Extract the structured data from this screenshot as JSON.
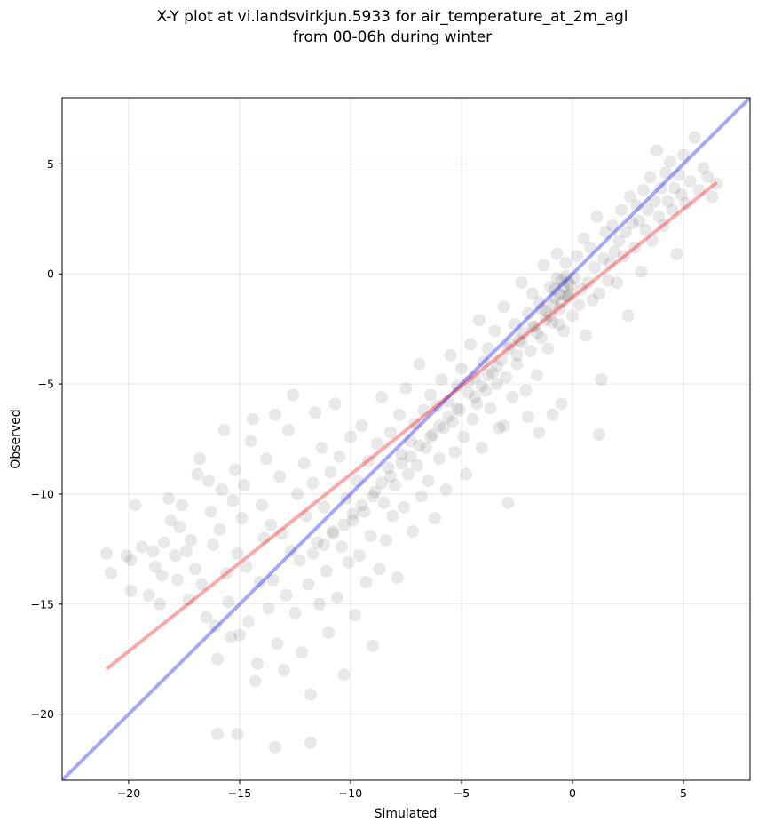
{
  "chart_data": {
    "type": "scatter",
    "title_lines": [
      "X-Y plot at vi.landsvirkjun.5933 for air_temperature_at_2m_agl",
      "from 00-06h during winter"
    ],
    "xlabel": "Simulated",
    "ylabel": "Observed",
    "xlim": [
      -23,
      8
    ],
    "ylim": [
      -23,
      8
    ],
    "x_ticks": [
      -20,
      -15,
      -10,
      -5,
      0,
      5
    ],
    "y_ticks": [
      -20,
      -15,
      -10,
      -5,
      0,
      5
    ],
    "x_tick_labels": [
      "−20",
      "−15",
      "−10",
      "−5",
      "0",
      "5"
    ],
    "y_tick_labels": [
      "−20",
      "−15",
      "−10",
      "−5",
      "0",
      "5"
    ],
    "grid": true,
    "point_color": "#000000",
    "point_opacity": 0.09,
    "identity_line": {
      "color": "#0000ff",
      "x": [
        -23,
        8
      ],
      "y": [
        -23,
        8
      ]
    },
    "fit_line": {
      "color": "#ff0000",
      "x": [
        -21,
        6.5
      ],
      "y": [
        -17.95,
        4.15
      ]
    },
    "points": [
      [
        -21.0,
        -12.7
      ],
      [
        -20.8,
        -13.6
      ],
      [
        -20.1,
        -12.8
      ],
      [
        -19.9,
        -13.0
      ],
      [
        -19.9,
        -14.4
      ],
      [
        -19.7,
        -10.5
      ],
      [
        -19.4,
        -12.4
      ],
      [
        -19.1,
        -14.6
      ],
      [
        -18.9,
        -12.6
      ],
      [
        -18.8,
        -13.3
      ],
      [
        -18.6,
        -15.0
      ],
      [
        -18.5,
        -13.7
      ],
      [
        -18.4,
        -12.2
      ],
      [
        -18.2,
        -10.2
      ],
      [
        -18.1,
        -11.2
      ],
      [
        -17.9,
        -12.8
      ],
      [
        -17.8,
        -13.9
      ],
      [
        -17.7,
        -11.5
      ],
      [
        -17.6,
        -10.5
      ],
      [
        -17.4,
        -12.6
      ],
      [
        -17.3,
        -14.8
      ],
      [
        -17.2,
        -12.1
      ],
      [
        -17.0,
        -13.4
      ],
      [
        -16.9,
        -9.1
      ],
      [
        -16.8,
        -8.4
      ],
      [
        -16.7,
        -14.1
      ],
      [
        -16.5,
        -15.6
      ],
      [
        -16.4,
        -9.4
      ],
      [
        -16.3,
        -10.8
      ],
      [
        -16.2,
        -12.3
      ],
      [
        -16.1,
        -16.0
      ],
      [
        -16.0,
        -17.5
      ],
      [
        -15.9,
        -11.6
      ],
      [
        -15.8,
        -9.8
      ],
      [
        -15.7,
        -7.1
      ],
      [
        -15.6,
        -13.6
      ],
      [
        -15.5,
        -14.9
      ],
      [
        -15.4,
        -16.5
      ],
      [
        -15.3,
        -10.3
      ],
      [
        -15.2,
        -8.9
      ],
      [
        -15.1,
        -12.7
      ],
      [
        -15.0,
        -16.4
      ],
      [
        -14.9,
        -11.1
      ],
      [
        -14.8,
        -9.6
      ],
      [
        -14.7,
        -13.3
      ],
      [
        -14.6,
        -15.8
      ],
      [
        -14.5,
        -7.6
      ],
      [
        -14.4,
        -6.6
      ],
      [
        -14.3,
        -18.5
      ],
      [
        -14.2,
        -17.7
      ],
      [
        -14.1,
        -14.0
      ],
      [
        -14.0,
        -10.5
      ],
      [
        -13.9,
        -12.0
      ],
      [
        -13.8,
        -8.4
      ],
      [
        -13.7,
        -15.2
      ],
      [
        -13.6,
        -11.4
      ],
      [
        -13.5,
        -13.9
      ],
      [
        -13.4,
        -6.4
      ],
      [
        -13.3,
        -16.8
      ],
      [
        -13.2,
        -9.2
      ],
      [
        -13.1,
        -11.8
      ],
      [
        -13.0,
        -18.0
      ],
      [
        -12.9,
        -14.6
      ],
      [
        -12.8,
        -7.1
      ],
      [
        -12.7,
        -12.6
      ],
      [
        -12.6,
        -5.5
      ],
      [
        -12.5,
        -15.4
      ],
      [
        -12.4,
        -10.0
      ],
      [
        -12.3,
        -13.0
      ],
      [
        -12.2,
        -17.2
      ],
      [
        -12.1,
        -8.6
      ],
      [
        -12.0,
        -11.0
      ],
      [
        -11.9,
        -14.1
      ],
      [
        -11.8,
        -19.1
      ],
      [
        -11.7,
        -9.5
      ],
      [
        -11.6,
        -6.3
      ],
      [
        -11.5,
        -12.2
      ],
      [
        -11.4,
        -15.0
      ],
      [
        -11.3,
        -7.9
      ],
      [
        -11.2,
        -10.6
      ],
      [
        -11.1,
        -13.5
      ],
      [
        -11.0,
        -16.3
      ],
      [
        -10.9,
        -9.0
      ],
      [
        -10.8,
        -11.7
      ],
      [
        -10.7,
        -5.9
      ],
      [
        -10.6,
        -14.7
      ],
      [
        -10.5,
        -8.3
      ],
      [
        -10.4,
        -12.4
      ],
      [
        -10.3,
        -18.2
      ],
      [
        -10.2,
        -10.2
      ],
      [
        -10.1,
        -13.1
      ],
      [
        -10.0,
        -7.4
      ],
      [
        -9.9,
        -11.2
      ],
      [
        -9.8,
        -15.5
      ],
      [
        -9.7,
        -9.4
      ],
      [
        -9.6,
        -12.8
      ],
      [
        -9.5,
        -6.9
      ],
      [
        -9.4,
        -10.8
      ],
      [
        -9.3,
        -14.0
      ],
      [
        -9.2,
        -8.5
      ],
      [
        -9.1,
        -11.9
      ],
      [
        -9.0,
        -16.9
      ],
      [
        -8.9,
        -9.9
      ],
      [
        -8.8,
        -7.7
      ],
      [
        -8.7,
        -13.4
      ],
      [
        -8.6,
        -5.6
      ],
      [
        -8.5,
        -10.4
      ],
      [
        -8.4,
        -12.1
      ],
      [
        -8.3,
        -8.8
      ],
      [
        -8.2,
        -7.2
      ],
      [
        -8.1,
        -11.0
      ],
      [
        -8.0,
        -9.6
      ],
      [
        -7.9,
        -13.8
      ],
      [
        -7.8,
        -6.4
      ],
      [
        -7.7,
        -8.2
      ],
      [
        -7.6,
        -10.6
      ],
      [
        -7.5,
        -5.2
      ],
      [
        -7.4,
        -9.1
      ],
      [
        -7.3,
        -7.6
      ],
      [
        -7.2,
        -11.7
      ],
      [
        -7.1,
        -6.8
      ],
      [
        -7.0,
        -8.7
      ],
      [
        -6.9,
        -4.1
      ],
      [
        -6.8,
        -10.1
      ],
      [
        -6.7,
        -6.2
      ],
      [
        -6.6,
        -7.9
      ],
      [
        -6.5,
        -9.4
      ],
      [
        -6.4,
        -5.5
      ],
      [
        -6.3,
        -7.3
      ],
      [
        -6.2,
        -11.1
      ],
      [
        -6.1,
        -6.0
      ],
      [
        -6.0,
        -8.4
      ],
      [
        -5.9,
        -4.8
      ],
      [
        -5.8,
        -7.0
      ],
      [
        -5.7,
        -9.8
      ],
      [
        -5.6,
        -5.8
      ],
      [
        -5.5,
        -3.7
      ],
      [
        -5.4,
        -6.7
      ],
      [
        -5.3,
        -8.1
      ],
      [
        -5.2,
        -5.1
      ],
      [
        -5.1,
        -6.2
      ],
      [
        -5.0,
        -4.3
      ],
      [
        -4.9,
        -7.4
      ],
      [
        -4.8,
        -9.1
      ],
      [
        -4.7,
        -5.4
      ],
      [
        -4.6,
        -3.2
      ],
      [
        -4.5,
        -6.6
      ],
      [
        -4.4,
        -4.7
      ],
      [
        -4.3,
        -5.9
      ],
      [
        -4.2,
        -2.1
      ],
      [
        -4.1,
        -7.9
      ],
      [
        -4.0,
        -4.0
      ],
      [
        -3.9,
        -5.3
      ],
      [
        -3.8,
        -3.4
      ],
      [
        -3.7,
        -6.1
      ],
      [
        -3.6,
        -4.5
      ],
      [
        -3.5,
        -2.6
      ],
      [
        -3.4,
        -5.0
      ],
      [
        -3.3,
        -7.0
      ],
      [
        -3.2,
        -3.9
      ],
      [
        -3.1,
        -1.5
      ],
      [
        -3.0,
        -4.7
      ],
      [
        -2.9,
        -10.4
      ],
      [
        -2.8,
        -3.2
      ],
      [
        -2.7,
        -5.6
      ],
      [
        -2.6,
        -2.3
      ],
      [
        -2.5,
        -4.1
      ],
      [
        -2.4,
        -3.0
      ],
      [
        -2.3,
        -0.4
      ],
      [
        -2.2,
        -2.7
      ],
      [
        -2.1,
        -5.3
      ],
      [
        -2.0,
        -1.8
      ],
      [
        -1.9,
        -3.5
      ],
      [
        -1.8,
        -0.9
      ],
      [
        -1.7,
        -2.4
      ],
      [
        -1.6,
        -4.6
      ],
      [
        -1.5,
        -1.3
      ],
      [
        -1.4,
        -2.9
      ],
      [
        -1.3,
        0.4
      ],
      [
        -1.2,
        -1.7
      ],
      [
        -1.1,
        -3.4
      ],
      [
        -1.0,
        -0.6
      ],
      [
        -0.9,
        -2.2
      ],
      [
        -0.8,
        -1.1
      ],
      [
        -0.7,
        0.9
      ],
      [
        -0.6,
        -1.6
      ],
      [
        -0.5,
        -0.3
      ],
      [
        -0.4,
        -2.6
      ],
      [
        -0.3,
        0.5
      ],
      [
        -0.2,
        -1.0
      ],
      [
        -0.1,
        -0.5
      ],
      [
        0.0,
        -1.9
      ],
      [
        0.1,
        -0.2
      ],
      [
        0.2,
        0.8
      ],
      [
        0.3,
        -1.4
      ],
      [
        0.4,
        -0.7
      ],
      [
        0.5,
        1.6
      ],
      [
        0.6,
        -2.8
      ],
      [
        0.7,
        -0.4
      ],
      [
        0.8,
        1.2
      ],
      [
        0.9,
        -1.2
      ],
      [
        1.0,
        0.3
      ],
      [
        1.1,
        2.6
      ],
      [
        1.2,
        -0.9
      ],
      [
        1.3,
        -4.8
      ],
      [
        1.4,
        0.7
      ],
      [
        1.5,
        1.9
      ],
      [
        1.6,
        -0.3
      ],
      [
        1.7,
        0.5
      ],
      [
        1.8,
        2.2
      ],
      [
        1.9,
        1.0
      ],
      [
        2.0,
        -0.4
      ],
      [
        2.1,
        1.5
      ],
      [
        2.2,
        2.9
      ],
      [
        2.3,
        0.8
      ],
      [
        2.4,
        1.9
      ],
      [
        2.5,
        -1.9
      ],
      [
        2.6,
        3.5
      ],
      [
        2.7,
        2.3
      ],
      [
        2.8,
        1.2
      ],
      [
        2.9,
        3.1
      ],
      [
        3.0,
        2.4
      ],
      [
        3.1,
        0.1
      ],
      [
        3.2,
        3.8
      ],
      [
        3.3,
        2.0
      ],
      [
        3.4,
        2.9
      ],
      [
        3.5,
        4.4
      ],
      [
        3.6,
        1.5
      ],
      [
        3.7,
        3.3
      ],
      [
        3.8,
        5.6
      ],
      [
        3.9,
        2.6
      ],
      [
        4.0,
        3.9
      ],
      [
        4.1,
        2.2
      ],
      [
        4.2,
        4.6
      ],
      [
        4.3,
        3.3
      ],
      [
        4.4,
        5.1
      ],
      [
        4.5,
        2.9
      ],
      [
        4.6,
        3.9
      ],
      [
        4.7,
        0.9
      ],
      [
        4.8,
        4.5
      ],
      [
        4.9,
        3.6
      ],
      [
        5.0,
        5.4
      ],
      [
        5.1,
        3.2
      ],
      [
        5.3,
        4.2
      ],
      [
        5.5,
        6.2
      ],
      [
        5.7,
        3.8
      ],
      [
        5.9,
        4.8
      ],
      [
        6.1,
        4.4
      ],
      [
        6.3,
        3.5
      ],
      [
        6.5,
        4.1
      ],
      [
        -16.0,
        -20.9
      ],
      [
        -15.1,
        -20.9
      ],
      [
        -13.4,
        -21.5
      ],
      [
        -11.8,
        -21.3
      ],
      [
        1.2,
        -7.3
      ],
      [
        -3.1,
        -6.9
      ],
      [
        -2.0,
        -6.5
      ],
      [
        -1.5,
        -7.2
      ],
      [
        -0.9,
        -6.4
      ],
      [
        -0.5,
        -5.9
      ],
      [
        -0.6,
        -0.9
      ],
      [
        -0.4,
        -0.6
      ],
      [
        -0.3,
        -1.0
      ],
      [
        -0.2,
        -0.4
      ],
      [
        -0.8,
        -0.7
      ],
      [
        -0.5,
        -1.3
      ],
      [
        -0.1,
        -0.9
      ],
      [
        -0.7,
        -0.2
      ],
      [
        -0.9,
        -1.4
      ],
      [
        -0.3,
        -0.1
      ],
      [
        -1.2,
        -2.1
      ],
      [
        -1.4,
        -1.6
      ],
      [
        -1.0,
        -1.9
      ],
      [
        -0.6,
        -2.3
      ],
      [
        -1.6,
        -2.7
      ],
      [
        -1.8,
        -2.4
      ],
      [
        -2.3,
        -3.1
      ],
      [
        -2.5,
        -3.7
      ],
      [
        -2.9,
        -3.4
      ],
      [
        -3.4,
        -4.2
      ],
      [
        -3.8,
        -4.6
      ],
      [
        -4.1,
        -5.1
      ],
      [
        -4.4,
        -5.6
      ],
      [
        -4.7,
        -4.9
      ],
      [
        -5.2,
        -6.1
      ],
      [
        -5.6,
        -6.5
      ],
      [
        -6.0,
        -6.9
      ],
      [
        -6.4,
        -7.4
      ],
      [
        -6.9,
        -7.8
      ],
      [
        -7.3,
        -8.3
      ],
      [
        -7.7,
        -8.6
      ],
      [
        -8.2,
        -9.2
      ],
      [
        -8.6,
        -9.5
      ],
      [
        -9.0,
        -10.1
      ],
      [
        -9.5,
        -10.5
      ],
      [
        -9.9,
        -10.9
      ],
      [
        -10.3,
        -11.4
      ],
      [
        -10.8,
        -11.8
      ],
      [
        -11.2,
        -12.3
      ],
      [
        -11.7,
        -12.7
      ]
    ]
  }
}
